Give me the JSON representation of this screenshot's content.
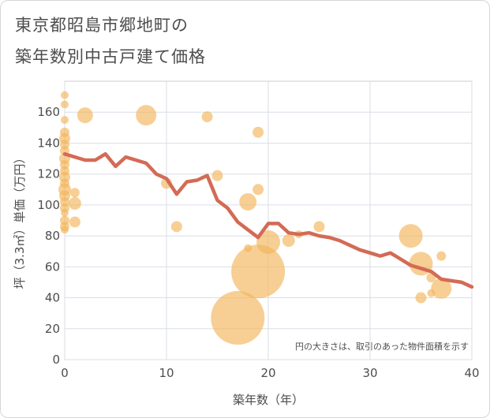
{
  "title_line1": "東京都昭島市郷地町の",
  "title_line2": "築年数別中古戸建て価格",
  "chart_data": {
    "type": "scatter",
    "xlabel": "築年数（年）",
    "ylabel": "坪（3.3㎡）単価（万円）",
    "xlim": [
      0,
      40
    ],
    "ylim": [
      0,
      180
    ],
    "xticks": [
      "0",
      "10",
      "20",
      "30",
      "40"
    ],
    "yticks": [
      "0",
      "20",
      "40",
      "60",
      "80",
      "100",
      "120",
      "140",
      "160"
    ],
    "grid": true,
    "note": "円の大きさは、取引のあった物件面積を示す",
    "bubble_color": "#f2b65a",
    "line_color": "#d36b55",
    "bubbles": [
      {
        "x": 0,
        "y": 171,
        "s": 5
      },
      {
        "x": 0,
        "y": 165,
        "s": 5
      },
      {
        "x": 0,
        "y": 155,
        "s": 5
      },
      {
        "x": 0,
        "y": 147,
        "s": 6
      },
      {
        "x": 0,
        "y": 143,
        "s": 7
      },
      {
        "x": 0,
        "y": 139,
        "s": 6
      },
      {
        "x": 0,
        "y": 135,
        "s": 6
      },
      {
        "x": 0,
        "y": 130,
        "s": 7
      },
      {
        "x": 0,
        "y": 126,
        "s": 6
      },
      {
        "x": 0,
        "y": 122,
        "s": 6
      },
      {
        "x": 0,
        "y": 118,
        "s": 7
      },
      {
        "x": 0,
        "y": 114,
        "s": 6
      },
      {
        "x": 0,
        "y": 110,
        "s": 8
      },
      {
        "x": 0,
        "y": 106,
        "s": 7
      },
      {
        "x": 0,
        "y": 102,
        "s": 6
      },
      {
        "x": 0,
        "y": 98,
        "s": 6
      },
      {
        "x": 0,
        "y": 95,
        "s": 5
      },
      {
        "x": 0,
        "y": 90,
        "s": 6
      },
      {
        "x": 0,
        "y": 86,
        "s": 6
      },
      {
        "x": 0,
        "y": 84,
        "s": 5
      },
      {
        "x": 1,
        "y": 108,
        "s": 6
      },
      {
        "x": 1,
        "y": 101,
        "s": 8
      },
      {
        "x": 1,
        "y": 89,
        "s": 7
      },
      {
        "x": 2,
        "y": 158,
        "s": 10
      },
      {
        "x": 8,
        "y": 158,
        "s": 13
      },
      {
        "x": 10,
        "y": 114,
        "s": 7
      },
      {
        "x": 11,
        "y": 86,
        "s": 7
      },
      {
        "x": 14,
        "y": 157,
        "s": 7
      },
      {
        "x": 15,
        "y": 119,
        "s": 7
      },
      {
        "x": 17,
        "y": 27,
        "s": 34
      },
      {
        "x": 18,
        "y": 102,
        "s": 11
      },
      {
        "x": 18,
        "y": 72,
        "s": 5
      },
      {
        "x": 19,
        "y": 147,
        "s": 7
      },
      {
        "x": 19,
        "y": 110,
        "s": 7
      },
      {
        "x": 19,
        "y": 57,
        "s": 34
      },
      {
        "x": 20,
        "y": 76,
        "s": 15
      },
      {
        "x": 22,
        "y": 77,
        "s": 8
      },
      {
        "x": 23,
        "y": 81,
        "s": 5
      },
      {
        "x": 25,
        "y": 86,
        "s": 7
      },
      {
        "x": 34,
        "y": 80,
        "s": 15
      },
      {
        "x": 35,
        "y": 62,
        "s": 15
      },
      {
        "x": 35,
        "y": 40,
        "s": 7
      },
      {
        "x": 36,
        "y": 53,
        "s": 6
      },
      {
        "x": 36,
        "y": 43,
        "s": 5
      },
      {
        "x": 37,
        "y": 67,
        "s": 6
      },
      {
        "x": 37,
        "y": 46,
        "s": 13
      }
    ],
    "line": {
      "x": [
        0,
        1,
        2,
        3,
        4,
        5,
        6,
        7,
        8,
        9,
        10,
        11,
        12,
        13,
        14,
        15,
        16,
        17,
        18,
        19,
        20,
        21,
        22,
        23,
        24,
        25,
        26,
        27,
        28,
        29,
        30,
        31,
        32,
        33,
        34,
        35,
        36,
        37,
        38,
        39,
        40
      ],
      "y": [
        133,
        131,
        129,
        129,
        133,
        125,
        131,
        129,
        127,
        120,
        117,
        107,
        115,
        116,
        119,
        103,
        98,
        89,
        84,
        79,
        88,
        88,
        82,
        81,
        82,
        80,
        79,
        77,
        74,
        71,
        69,
        67,
        69,
        65,
        61,
        59,
        57,
        52,
        51,
        50,
        47
      ]
    }
  }
}
